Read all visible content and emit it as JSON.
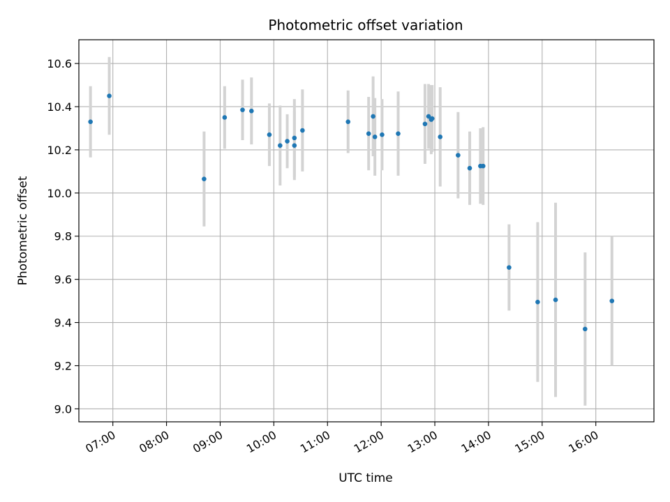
{
  "chart_data": {
    "type": "scatter",
    "title": "Photometric offset variation",
    "xlabel": "UTC time",
    "ylabel": "Photometric offset",
    "x_axis_type": "time",
    "xlim": [
      "06:22",
      "17:05"
    ],
    "ylim": [
      8.94,
      10.71
    ],
    "x_ticks": [
      "07:00",
      "08:00",
      "09:00",
      "10:00",
      "11:00",
      "12:00",
      "13:00",
      "14:00",
      "15:00",
      "16:00"
    ],
    "y_ticks": [
      9.0,
      9.2,
      9.4,
      9.6,
      9.8,
      10.0,
      10.2,
      10.4,
      10.6
    ],
    "y_tick_labels": [
      "9.0",
      "9.2",
      "9.4",
      "9.6",
      "9.8",
      "10.0",
      "10.2",
      "10.4",
      "10.6"
    ],
    "grid": true,
    "colors": {
      "point": "#1f77b4",
      "errorbar": "#d3d3d3",
      "grid": "#b0b0b0"
    },
    "points": [
      {
        "x": "06:35",
        "y": 10.33,
        "err": 0.165
      },
      {
        "x": "06:56",
        "y": 10.45,
        "err": 0.18
      },
      {
        "x": "08:42",
        "y": 10.065,
        "err": 0.22
      },
      {
        "x": "09:05",
        "y": 10.35,
        "err": 0.145
      },
      {
        "x": "09:25",
        "y": 10.385,
        "err": 0.14
      },
      {
        "x": "09:35",
        "y": 10.38,
        "err": 0.155
      },
      {
        "x": "09:55",
        "y": 10.27,
        "err": 0.145
      },
      {
        "x": "10:07",
        "y": 10.22,
        "err": 0.185
      },
      {
        "x": "10:15",
        "y": 10.24,
        "err": 0.125
      },
      {
        "x": "10:23",
        "y": 10.255,
        "err": 0.18
      },
      {
        "x": "10:23",
        "y": 10.22,
        "err": 0.16
      },
      {
        "x": "10:32",
        "y": 10.29,
        "err": 0.19
      },
      {
        "x": "11:23",
        "y": 10.33,
        "err": 0.145
      },
      {
        "x": "11:46",
        "y": 10.275,
        "err": 0.17
      },
      {
        "x": "11:51",
        "y": 10.355,
        "err": 0.185
      },
      {
        "x": "11:53",
        "y": 10.26,
        "err": 0.18
      },
      {
        "x": "12:01",
        "y": 10.27,
        "err": 0.165
      },
      {
        "x": "12:19",
        "y": 10.275,
        "err": 0.195
      },
      {
        "x": "12:49",
        "y": 10.32,
        "err": 0.185
      },
      {
        "x": "12:53",
        "y": 10.355,
        "err": 0.15
      },
      {
        "x": "12:56",
        "y": 10.34,
        "err": 0.16
      },
      {
        "x": "12:57",
        "y": 10.345,
        "err": 0.155
      },
      {
        "x": "13:06",
        "y": 10.26,
        "err": 0.23
      },
      {
        "x": "13:26",
        "y": 10.175,
        "err": 0.2
      },
      {
        "x": "13:39",
        "y": 10.115,
        "err": 0.17
      },
      {
        "x": "13:51",
        "y": 10.125,
        "err": 0.175
      },
      {
        "x": "13:54",
        "y": 10.125,
        "err": 0.18
      },
      {
        "x": "14:23",
        "y": 9.655,
        "err": 0.2
      },
      {
        "x": "14:55",
        "y": 9.495,
        "err": 0.37
      },
      {
        "x": "15:15",
        "y": 9.505,
        "err": 0.45
      },
      {
        "x": "15:48",
        "y": 9.37,
        "err": 0.355
      },
      {
        "x": "16:18",
        "y": 9.5,
        "err": 0.3
      }
    ]
  }
}
